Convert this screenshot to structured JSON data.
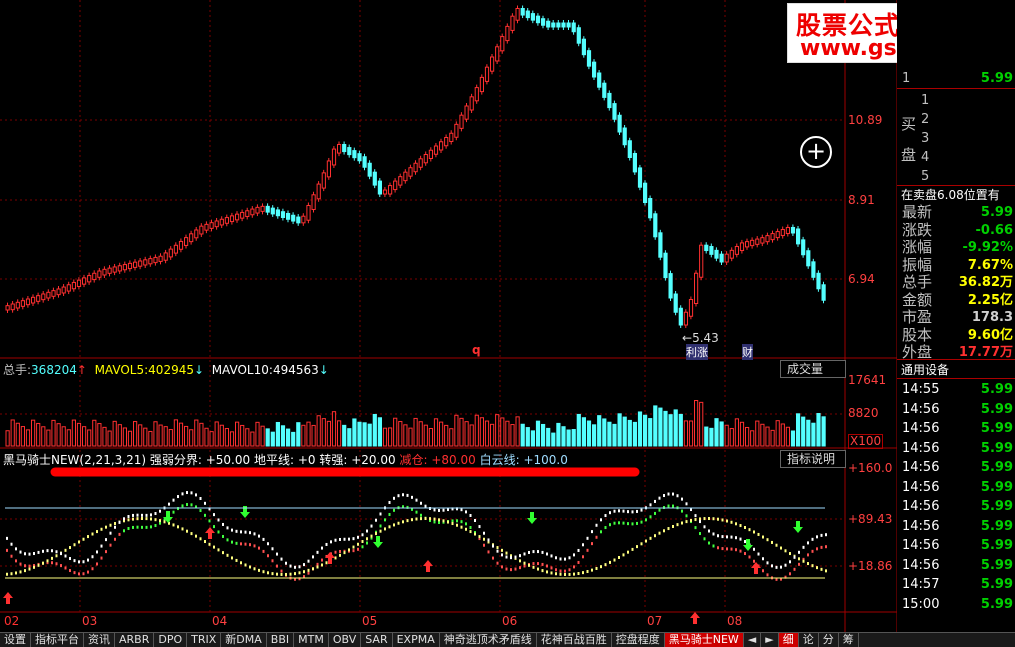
{
  "watermark": {
    "line1": "股票公式指标网",
    "line2": "www.gszb.com"
  },
  "price_axis": [
    "10.89",
    "8.91",
    "6.94"
  ],
  "low_label": "5.43",
  "news_marks": [
    "q",
    "利",
    "涨",
    "财"
  ],
  "volume": {
    "legend_total_label": "总手:",
    "legend_total_value": "368204",
    "ma5_label": "MAVOL5:",
    "ma5_value": "402945",
    "ma10_label": "MAVOL10:",
    "ma10_value": "494563",
    "box_label": "成交量",
    "axis": [
      "17641",
      "8820",
      "X100"
    ]
  },
  "indicator": {
    "name": "黑马骑士NEW(2,21,3,21)",
    "strong_line": "强弱分界: +50.00",
    "ground_line": "地平线: +0",
    "turn_strong": "转强: +20.00",
    "reduce": "减仓: +80.00",
    "cloud_line": "白云线: +100.0",
    "box_label": "指标说明",
    "axis": [
      "+160.0",
      "+89.43",
      "+18.86"
    ]
  },
  "x_axis": [
    "02",
    "03",
    "04",
    "05",
    "06",
    "07",
    "08"
  ],
  "right_panel": {
    "sell_rows": [
      {
        "n": "1",
        "v": "5.99"
      }
    ],
    "buy_label_1": "买",
    "buy_label_2": "盘",
    "buy_rows": [
      "1",
      "2",
      "3",
      "4",
      "5"
    ],
    "notice": "在卖盘6.08位置有",
    "stats": [
      {
        "label": "最新",
        "value": "5.99",
        "color": "#00d000"
      },
      {
        "label": "涨跌",
        "value": "-0.66",
        "color": "#00d000"
      },
      {
        "label": "涨幅",
        "value": "-9.92%",
        "color": "#00d000"
      },
      {
        "label": "振幅",
        "value": "7.67%",
        "color": "#ffff00"
      },
      {
        "label": "总手",
        "value": "36.82万",
        "color": "#ffff00"
      },
      {
        "label": "金额",
        "value": "2.25亿",
        "color": "#ffff00"
      },
      {
        "label": "市盈",
        "value": "178.3",
        "color": "#d0d0d0"
      },
      {
        "label": "股本",
        "value": "9.60亿",
        "color": "#ffff00"
      },
      {
        "label": "外盘",
        "value": "17.77万",
        "color": "#ff3030"
      }
    ],
    "device_label": "通用设备",
    "ticks": [
      {
        "t": "14:55",
        "p": "5.99"
      },
      {
        "t": "14:56",
        "p": "5.99"
      },
      {
        "t": "14:56",
        "p": "5.99"
      },
      {
        "t": "14:56",
        "p": "5.99"
      },
      {
        "t": "14:56",
        "p": "5.99"
      },
      {
        "t": "14:56",
        "p": "5.99"
      },
      {
        "t": "14:56",
        "p": "5.99"
      },
      {
        "t": "14:56",
        "p": "5.99"
      },
      {
        "t": "14:56",
        "p": "5.99"
      },
      {
        "t": "14:56",
        "p": "5.99"
      },
      {
        "t": "14:57",
        "p": "5.99"
      },
      {
        "t": "15:00",
        "p": "5.99"
      }
    ]
  },
  "tabs": [
    "设置",
    "指标平台",
    "资讯",
    "ARBR",
    "DPO",
    "TRIX",
    "新DMA",
    "BBI",
    "MTM",
    "OBV",
    "SAR",
    "EXPMA",
    "神奇逃顶术矛盾线",
    "花神百战百胜",
    "控盘程度",
    "黑马骑士NEW"
  ],
  "tab_nav": [
    "◄",
    "►"
  ],
  "bottom_right_tabs": [
    "细",
    "论",
    "分",
    "筹"
  ],
  "colors": {
    "up": "#ff3030",
    "down": "#54ffff",
    "accent": "#c00000"
  }
}
